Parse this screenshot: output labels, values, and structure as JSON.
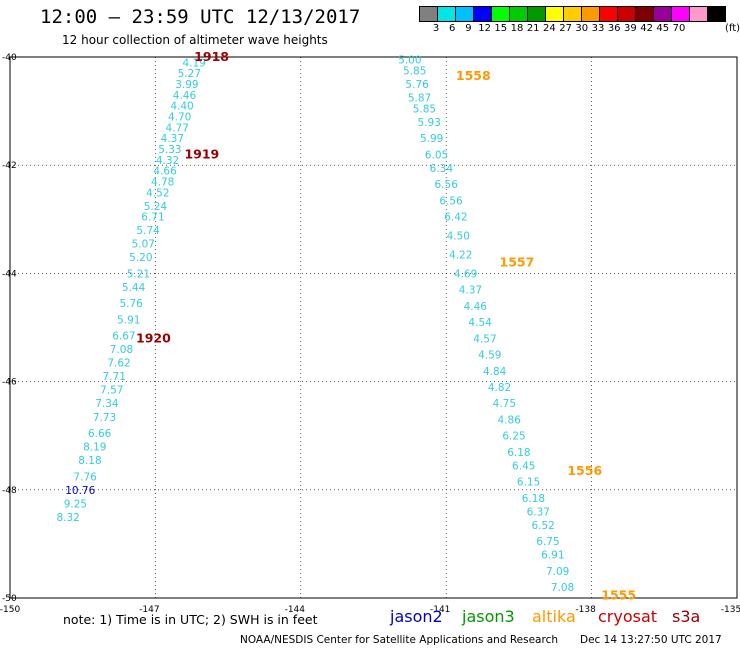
{
  "header": {
    "title": "12:00 – 23:59 UTC 12/13/2017",
    "subtitle": "12 hour collection of altimeter wave heights"
  },
  "colorbar": {
    "colors": [
      "#808080",
      "#00e5e5",
      "#00bfff",
      "#0000ff",
      "#00ff00",
      "#00cc00",
      "#009900",
      "#ffff00",
      "#ffcc00",
      "#ff9900",
      "#ff0000",
      "#cc0000",
      "#800000",
      "#990099",
      "#ff00ff",
      "#ff99cc",
      "#000000"
    ],
    "labels": [
      "3",
      "6",
      "9",
      "12",
      "15",
      "18",
      "21",
      "24",
      "27",
      "30",
      "33",
      "36",
      "39",
      "42",
      "45",
      "70"
    ],
    "unit": "(ft)"
  },
  "axes": {
    "lat_labels": [
      "-40",
      "-42",
      "-44",
      "-46",
      "-48",
      "-50"
    ],
    "lon_labels": [
      "-150",
      "-147",
      "-144",
      "-141",
      "-138",
      "-135"
    ]
  },
  "map_data": {
    "lon_range": [
      -150,
      -135
    ],
    "lat_range": [
      -50,
      -40
    ],
    "tracks": [
      {
        "color": "#33ccdd",
        "points": [
          [
            -146.2,
            -40.1,
            "4.19"
          ],
          [
            -146.3,
            -40.3,
            "5.27"
          ],
          [
            -146.35,
            -40.5,
            "3.99"
          ],
          [
            -146.4,
            -40.7,
            "4.46"
          ],
          [
            -146.45,
            -40.9,
            "4.40"
          ],
          [
            -146.5,
            -41.1,
            "4.70"
          ],
          [
            -146.55,
            -41.3,
            "4.77"
          ],
          [
            -146.65,
            -41.5,
            "4.37"
          ],
          [
            -146.7,
            -41.7,
            "5.33"
          ],
          [
            -146.75,
            -41.9,
            "4.32"
          ],
          [
            -146.8,
            -42.1,
            "4.66"
          ],
          [
            -146.85,
            -42.3,
            "4.78"
          ],
          [
            -146.95,
            -42.5,
            "4.52"
          ],
          [
            -147.0,
            -42.75,
            "5.24"
          ],
          [
            -147.05,
            -42.95,
            "6.71"
          ],
          [
            -147.15,
            -43.2,
            "5.74"
          ],
          [
            -147.25,
            -43.45,
            "5.07"
          ],
          [
            -147.3,
            -43.7,
            "5.20"
          ],
          [
            -147.35,
            -44.0,
            "5.21"
          ],
          [
            -147.45,
            -44.25,
            "5.44"
          ],
          [
            -147.5,
            -44.55,
            "5.76"
          ],
          [
            -147.55,
            -44.85,
            "5.91"
          ],
          [
            -147.65,
            -45.15,
            "6.67"
          ],
          [
            -147.7,
            -45.4,
            "7.08"
          ],
          [
            -147.75,
            -45.65,
            "7.62"
          ],
          [
            -147.85,
            -45.9,
            "7.71"
          ],
          [
            -147.9,
            -46.15,
            "7.57"
          ],
          [
            -148.0,
            -46.4,
            "7.34"
          ],
          [
            -148.05,
            -46.65,
            "7.73"
          ],
          [
            -148.15,
            -46.95,
            "6.66"
          ],
          [
            -148.25,
            -47.2,
            "8.19"
          ],
          [
            -148.35,
            -47.45,
            "8.18"
          ],
          [
            -148.45,
            -47.75,
            "7.76"
          ]
        ]
      },
      {
        "color": "#0000cc",
        "points": [
          [
            -148.55,
            -48.0,
            "10.76"
          ]
        ]
      },
      {
        "color": "#33ccdd",
        "points": [
          [
            -148.65,
            -48.25,
            "9.25"
          ],
          [
            -148.8,
            -48.5,
            "8.32"
          ]
        ]
      },
      {
        "color": "#33ccdd",
        "points": [
          [
            -141.75,
            -40.05,
            "5.00"
          ],
          [
            -141.65,
            -40.25,
            "5.85"
          ],
          [
            -141.6,
            -40.5,
            "5.76"
          ],
          [
            -141.55,
            -40.75,
            "5.87"
          ],
          [
            -141.45,
            -40.95,
            "5.85"
          ],
          [
            -141.35,
            -41.2,
            "5.93"
          ],
          [
            -141.3,
            -41.5,
            "5.99"
          ],
          [
            -141.2,
            -41.8,
            "6.05"
          ],
          [
            -141.1,
            -42.05,
            "6.34"
          ],
          [
            -141.0,
            -42.35,
            "6.56"
          ],
          [
            -140.9,
            -42.65,
            "6.56"
          ],
          [
            -140.8,
            -42.95,
            "6.42"
          ],
          [
            -140.75,
            -43.3,
            "4.50"
          ],
          [
            -140.7,
            -43.65,
            "4.22"
          ],
          [
            -140.6,
            -44.0,
            "4.69"
          ],
          [
            -140.5,
            -44.3,
            "4.37"
          ],
          [
            -140.4,
            -44.6,
            "4.46"
          ],
          [
            -140.3,
            -44.9,
            "4.54"
          ],
          [
            -140.2,
            -45.2,
            "4.57"
          ],
          [
            -140.1,
            -45.5,
            "4.59"
          ],
          [
            -140.0,
            -45.8,
            "4.84"
          ],
          [
            -139.9,
            -46.1,
            "4.82"
          ],
          [
            -139.8,
            -46.4,
            "4.75"
          ],
          [
            -139.7,
            -46.7,
            "4.86"
          ],
          [
            -139.6,
            -47.0,
            "6.25"
          ],
          [
            -139.5,
            -47.3,
            "6.18"
          ],
          [
            -139.4,
            -47.55,
            "6.45"
          ],
          [
            -139.3,
            -47.85,
            "6.15"
          ],
          [
            -139.2,
            -48.15,
            "6.18"
          ],
          [
            -139.1,
            -48.4,
            "6.37"
          ],
          [
            -139.0,
            -48.65,
            "6.52"
          ],
          [
            -138.9,
            -48.95,
            "6.75"
          ],
          [
            -138.8,
            -49.2,
            "6.91"
          ],
          [
            -138.7,
            -49.5,
            "7.09"
          ],
          [
            -138.6,
            -49.8,
            "7.08"
          ]
        ]
      }
    ],
    "time_labels": [
      {
        "lon": -146.2,
        "lat": -40.0,
        "text": "1918",
        "color": "#990000"
      },
      {
        "lon": -146.4,
        "lat": -41.8,
        "text": "1919",
        "color": "#990000"
      },
      {
        "lon": -147.4,
        "lat": -45.2,
        "text": "1920",
        "color": "#990000"
      },
      {
        "lon": -140.8,
        "lat": -40.35,
        "text": "1558",
        "color": "#ff9900"
      },
      {
        "lon": -139.9,
        "lat": -43.8,
        "text": "1557",
        "color": "#ff9900"
      },
      {
        "lon": -138.5,
        "lat": -47.65,
        "text": "1556",
        "color": "#ff9900"
      },
      {
        "lon": -137.8,
        "lat": -49.95,
        "text": "1555",
        "color": "#ff9900"
      }
    ]
  },
  "legend": {
    "note": "note:  1) Time is in UTC; 2) SWH is in feet",
    "satellites": [
      {
        "name": "jason2",
        "color": "#0000cc"
      },
      {
        "name": "jason3",
        "color": "#009900"
      },
      {
        "name": "altika",
        "color": "#ff9900"
      },
      {
        "name": "cryosat",
        "color": "#cc0000"
      },
      {
        "name": "s3a",
        "color": "#990000"
      }
    ]
  },
  "footer": {
    "credit": "NOAA/NESDIS Center for Satellite Applications and Research",
    "timestamp": "Dec 14 13:27:50 UTC 2017"
  }
}
